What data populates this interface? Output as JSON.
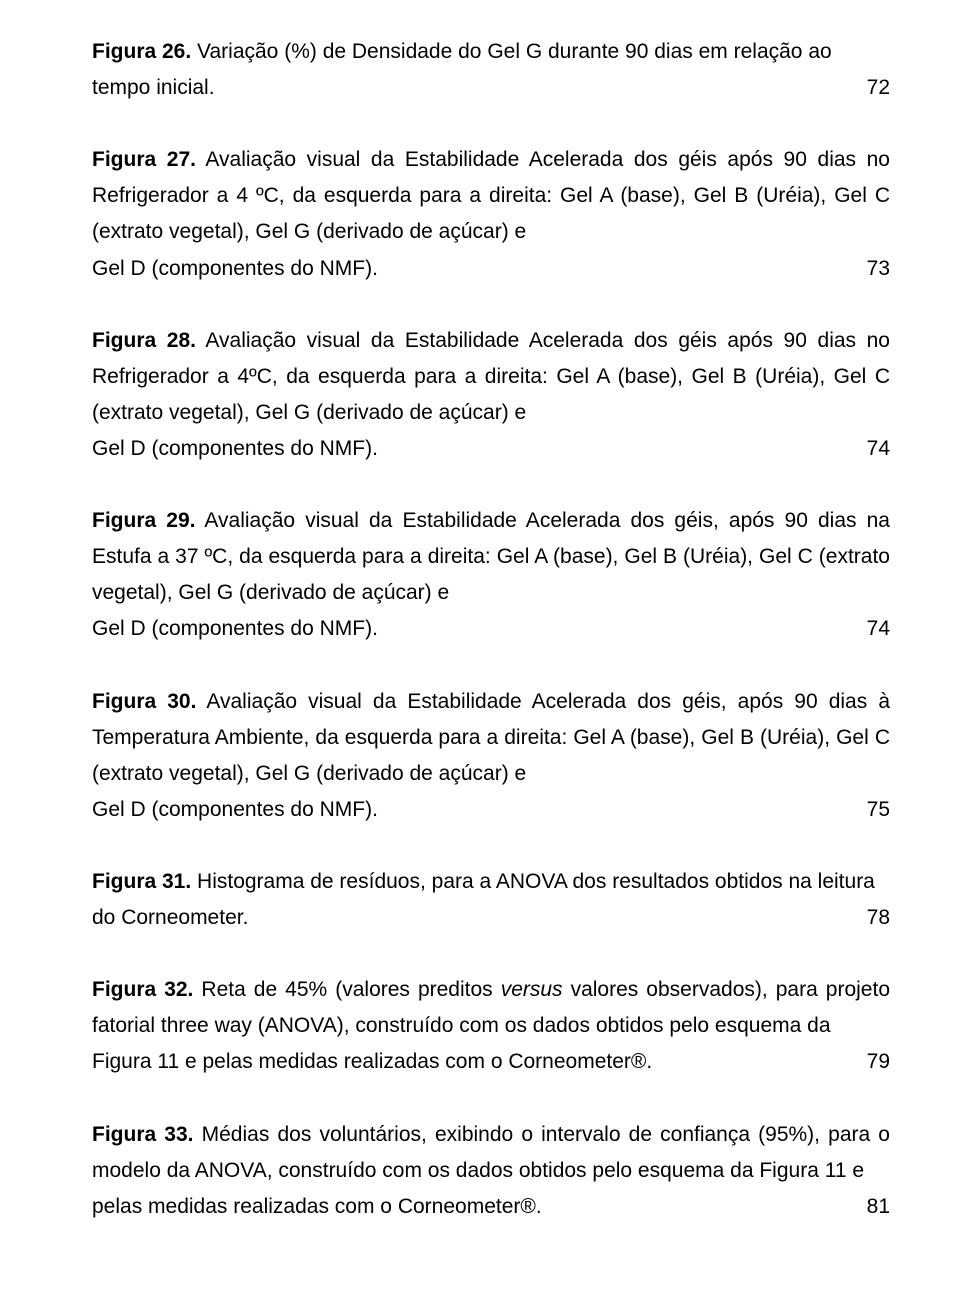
{
  "typography": {
    "font_family": "Arial",
    "font_size_pt": 12,
    "color": "#000000",
    "background": "#ffffff",
    "line_height": 1.72,
    "alignment": "justify",
    "label_weight": "bold"
  },
  "entries": [
    {
      "label": "Figura 26.",
      "body": " Variação (%) de Densidade do Gel G durante 90 dias em relação ao",
      "tail": "tempo inicial.",
      "page": "72"
    },
    {
      "label": "Figura 27.",
      "body": " Avaliação visual da Estabilidade Acelerada dos géis após 90 dias no Refrigerador a 4 ºC, da esquerda para a direita: Gel A (base), Gel B (Uréia), Gel C (extrato vegetal), Gel G (derivado de açúcar) e",
      "tail": "Gel D (componentes do NMF).",
      "page": "73"
    },
    {
      "label": "Figura 28.",
      "body": " Avaliação visual da Estabilidade Acelerada dos géis após 90 dias no Refrigerador a 4ºC, da esquerda para a direita: Gel A (base), Gel B (Uréia), Gel C (extrato vegetal), Gel G (derivado de açúcar) e",
      "tail": "Gel D (componentes do NMF).",
      "page": "74"
    },
    {
      "label": "Figura 29.",
      "body": " Avaliação visual da Estabilidade Acelerada dos géis, após 90 dias na Estufa a 37 ºC, da esquerda para a direita: Gel A (base), Gel B (Uréia), Gel C (extrato vegetal), Gel G (derivado de açúcar) e",
      "tail": "Gel D (componentes do NMF).",
      "page": "74"
    },
    {
      "label": "Figura 30.",
      "body": " Avaliação visual da Estabilidade Acelerada dos géis, após 90 dias à Temperatura Ambiente, da esquerda para a direita: Gel A (base), Gel B (Uréia), Gel C (extrato vegetal), Gel G (derivado de açúcar) e",
      "tail": "Gel D (componentes do NMF).",
      "page": "75"
    },
    {
      "label": "Figura 31.",
      "body": " Histograma de resíduos, para a ANOVA dos resultados obtidos na leitura",
      "tail": "do Corneometer.",
      "page": "78"
    },
    {
      "label": "Figura 32.",
      "body_pre": " Reta de 45% (valores preditos ",
      "italic": "versus",
      "body_post": " valores observados), para projeto fatorial three way (ANOVA), construído com os dados obtidos pelo esquema da",
      "tail": "Figura 11 e pelas medidas realizadas com o Corneometer®.",
      "page": "79"
    },
    {
      "label": "Figura 33.",
      "body": " Médias dos voluntários, exibindo o intervalo de confiança (95%), para o modelo da ANOVA, construído com os dados obtidos pelo esquema da Figura 11 e",
      "tail": "pelas medidas realizadas com o Corneometer®.",
      "page": "81"
    }
  ]
}
